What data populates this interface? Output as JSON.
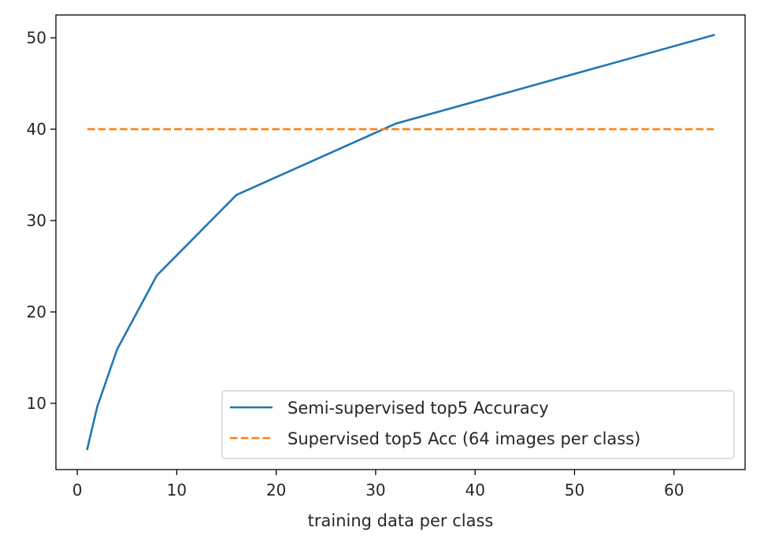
{
  "chart_data": {
    "type": "line",
    "title": "",
    "xlabel": "training data per class",
    "ylabel": "",
    "xlim": [
      -2.15,
      67.15
    ],
    "ylim": [
      2.75,
      52.5
    ],
    "xticks": [
      0,
      10,
      20,
      30,
      40,
      50,
      60
    ],
    "yticks": [
      10,
      20,
      30,
      40,
      50
    ],
    "grid": false,
    "legend_position": "lower-right",
    "series": [
      {
        "name": "Semi-supervised top5 Accuracy",
        "style": "solid",
        "color": "#1f77b4",
        "x": [
          1,
          2,
          4,
          8,
          16,
          32,
          64
        ],
        "y": [
          5.0,
          9.6,
          15.9,
          24.0,
          32.8,
          40.6,
          50.3
        ]
      },
      {
        "name": "Supervised top5 Acc (64 images per class)",
        "style": "dashed",
        "color": "#ff7f0e",
        "x": [
          1,
          64
        ],
        "y": [
          40.0,
          40.0
        ]
      }
    ]
  }
}
